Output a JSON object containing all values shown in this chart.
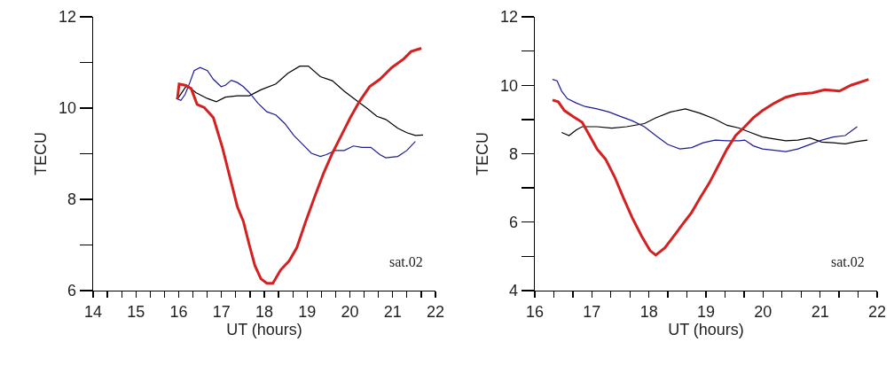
{
  "chart_data": [
    {
      "type": "line",
      "xlabel": "UT (hours)",
      "ylabel": "TECU",
      "annotations": [
        "sat.02"
      ],
      "xlim": [
        14,
        22
      ],
      "ylim": [
        6,
        12
      ],
      "xticks": [
        14,
        {
          "value": 14.333,
          "label": null
        },
        {
          "value": 14.667,
          "label": null
        },
        15,
        {
          "value": 15.333,
          "label": null
        },
        {
          "value": 15.667,
          "label": null
        },
        16,
        {
          "value": 16.333,
          "label": null
        },
        {
          "value": 16.667,
          "label": null
        },
        17,
        {
          "value": 17.333,
          "label": null
        },
        {
          "value": 17.667,
          "label": null
        },
        18,
        {
          "value": 18.333,
          "label": null
        },
        {
          "value": 18.667,
          "label": null
        },
        19,
        {
          "value": 19.333,
          "label": null
        },
        {
          "value": 19.667,
          "label": null
        },
        20,
        {
          "value": 20.333,
          "label": null
        },
        {
          "value": 20.667,
          "label": null
        },
        21,
        {
          "value": 21.333,
          "label": null
        },
        {
          "value": 21.667,
          "label": null
        },
        22
      ],
      "yticks": [
        6,
        {
          "value": 7,
          "label": null
        },
        8,
        {
          "value": 9,
          "label": null
        },
        10,
        {
          "value": 11,
          "label": null
        },
        12
      ],
      "series": [
        {
          "color": "#000000",
          "x": [
            15.98,
            16.19,
            16.4,
            16.67,
            16.88,
            17.09,
            17.37,
            17.65,
            17.92,
            18.27,
            18.55,
            18.83,
            19.03,
            19.31,
            19.59,
            19.87,
            20.15,
            20.42,
            20.63,
            20.84,
            21.12,
            21.33,
            21.53,
            21.71
          ],
          "values": [
            10.21,
            10.5,
            10.34,
            10.21,
            10.14,
            10.24,
            10.27,
            10.27,
            10.4,
            10.53,
            10.76,
            10.92,
            10.92,
            10.69,
            10.6,
            10.37,
            10.17,
            9.98,
            9.82,
            9.75,
            9.56,
            9.46,
            9.4,
            9.41
          ]
        },
        {
          "color": "#1c1c96",
          "x": [
            15.94,
            16.05,
            16.15,
            16.26,
            16.36,
            16.5,
            16.67,
            16.81,
            16.99,
            17.09,
            17.23,
            17.37,
            17.51,
            17.65,
            17.85,
            18.06,
            18.27,
            18.48,
            18.69,
            18.9,
            19.1,
            19.31,
            19.45,
            19.66,
            19.87,
            20.08,
            20.28,
            20.49,
            20.7,
            20.84,
            21.12,
            21.33,
            21.53
          ],
          "values": [
            10.21,
            10.17,
            10.3,
            10.56,
            10.82,
            10.89,
            10.82,
            10.63,
            10.47,
            10.5,
            10.61,
            10.56,
            10.47,
            10.34,
            10.11,
            9.92,
            9.85,
            9.66,
            9.4,
            9.2,
            9.01,
            8.94,
            8.98,
            9.07,
            9.07,
            9.17,
            9.14,
            9.14,
            8.98,
            8.91,
            8.94,
            9.07,
            9.27
          ]
        },
        {
          "color": "#d42020",
          "x": [
            15.97,
            16.01,
            16.15,
            16.29,
            16.43,
            16.6,
            16.81,
            17.02,
            17.23,
            17.37,
            17.51,
            17.65,
            17.78,
            17.92,
            18.06,
            18.2,
            18.38,
            18.58,
            18.76,
            18.97,
            19.17,
            19.38,
            19.59,
            19.8,
            20.01,
            20.22,
            20.46,
            20.7,
            20.98,
            21.26,
            21.43,
            21.67
          ],
          "values": [
            10.21,
            10.53,
            10.5,
            10.43,
            10.08,
            10.01,
            9.79,
            9.14,
            8.36,
            7.84,
            7.52,
            7.0,
            6.55,
            6.26,
            6.16,
            6.16,
            6.45,
            6.65,
            6.94,
            7.52,
            8.04,
            8.56,
            9.01,
            9.4,
            9.79,
            10.14,
            10.47,
            10.63,
            10.89,
            11.08,
            11.24,
            11.31
          ]
        }
      ]
    },
    {
      "type": "line",
      "xlabel": "UT (hours)",
      "ylabel": "TECU",
      "annotations": [
        "sat.02"
      ],
      "xlim": [
        16,
        22
      ],
      "ylim": [
        4,
        12
      ],
      "xticks": [
        16,
        {
          "value": 16.333,
          "label": null
        },
        {
          "value": 16.667,
          "label": null
        },
        17,
        {
          "value": 17.333,
          "label": null
        },
        {
          "value": 17.667,
          "label": null
        },
        18,
        {
          "value": 18.333,
          "label": null
        },
        {
          "value": 18.667,
          "label": null
        },
        19,
        {
          "value": 19.333,
          "label": null
        },
        {
          "value": 19.667,
          "label": null
        },
        20,
        {
          "value": 20.333,
          "label": null
        },
        {
          "value": 20.667,
          "label": null
        },
        21,
        {
          "value": 21.333,
          "label": null
        },
        {
          "value": 21.667,
          "label": null
        },
        22
      ],
      "yticks": [
        4,
        {
          "value": 5,
          "label": null
        },
        6,
        {
          "value": 7,
          "label": null
        },
        8,
        {
          "value": 9,
          "label": null
        },
        10,
        {
          "value": 11,
          "label": null
        },
        12
      ],
      "series": [
        {
          "color": "#000000",
          "x": [
            16.47,
            16.6,
            16.73,
            16.83,
            17.09,
            17.35,
            17.61,
            17.92,
            18.12,
            18.38,
            18.64,
            18.9,
            19.16,
            19.37,
            19.58,
            19.78,
            19.99,
            20.2,
            20.4,
            20.61,
            20.82,
            21.03,
            21.23,
            21.44,
            21.65,
            21.83
          ],
          "values": [
            8.62,
            8.53,
            8.7,
            8.79,
            8.79,
            8.75,
            8.79,
            8.88,
            9.05,
            9.22,
            9.31,
            9.18,
            9.01,
            8.83,
            8.75,
            8.62,
            8.49,
            8.43,
            8.38,
            8.4,
            8.46,
            8.34,
            8.32,
            8.29,
            8.36,
            8.4
          ]
        },
        {
          "color": "#1c1c96",
          "x": [
            16.31,
            16.39,
            16.47,
            16.57,
            16.73,
            16.88,
            17.09,
            17.3,
            17.5,
            17.71,
            17.92,
            18.12,
            18.33,
            18.54,
            18.75,
            18.95,
            19.16,
            19.37,
            19.58,
            19.68,
            19.83,
            19.99,
            20.2,
            20.4,
            20.61,
            20.82,
            21.03,
            21.23,
            21.44,
            21.65
          ],
          "values": [
            10.17,
            10.13,
            9.83,
            9.61,
            9.48,
            9.38,
            9.31,
            9.22,
            9.09,
            8.96,
            8.79,
            8.53,
            8.27,
            8.14,
            8.18,
            8.32,
            8.4,
            8.38,
            8.38,
            8.4,
            8.23,
            8.14,
            8.1,
            8.06,
            8.14,
            8.27,
            8.4,
            8.49,
            8.53,
            8.79
          ]
        },
        {
          "color": "#d42020",
          "x": [
            16.31,
            16.41,
            16.52,
            16.67,
            16.83,
            16.93,
            17.09,
            17.24,
            17.4,
            17.55,
            17.71,
            17.87,
            18.02,
            18.12,
            18.28,
            18.44,
            18.59,
            18.75,
            18.9,
            19.06,
            19.21,
            19.37,
            19.52,
            19.68,
            19.83,
            19.99,
            20.2,
            20.4,
            20.61,
            20.87,
            21.08,
            21.34,
            21.54,
            21.85
          ],
          "values": [
            9.57,
            9.52,
            9.26,
            9.09,
            8.92,
            8.62,
            8.14,
            7.84,
            7.32,
            6.72,
            6.12,
            5.6,
            5.17,
            5.04,
            5.25,
            5.6,
            5.94,
            6.29,
            6.72,
            7.15,
            7.63,
            8.14,
            8.53,
            8.79,
            9.05,
            9.26,
            9.48,
            9.65,
            9.74,
            9.78,
            9.87,
            9.83,
            10.0,
            10.17
          ]
        }
      ]
    }
  ]
}
